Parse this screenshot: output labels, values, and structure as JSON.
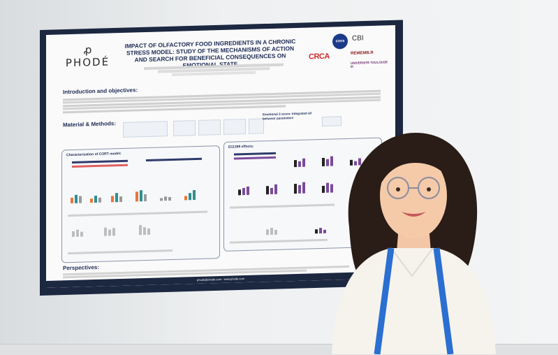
{
  "poster": {
    "brand": "PHODÉ",
    "brand_mark": "ꝓ",
    "title": "IMPACT OF OLFACTORY FOOD INGREDIENTS IN A CHRONIC STRESS MODEL: STUDY OF THE MECHANISMS OF ACTION AND SEARCH FOR BENEFICIAL CONSEQUENCES ON EMOTIONAL STATE",
    "partners": {
      "cnrs": "cnrs",
      "crca": "CRCA",
      "cbi": "CBI",
      "rememb": "REMEMB.R",
      "univ": "UNIVERSITÉ TOULOUSE III"
    },
    "sections": {
      "intro": "Introduction and objectives:",
      "methods": "Material & Methods:",
      "emotional": "Emotional Z-score: Integrated all behavior parameters",
      "cort_model": "Characterization of CORT model:",
      "d11399": "D11399 effects:",
      "perspectives": "Perspectives:"
    },
    "footer": "phode@phode.com - www.phode.com"
  },
  "colors": {
    "poster_border": "#1c2740",
    "title_blue": "#1d2b55",
    "bar_orange": "#e8773a",
    "bar_teal": "#2f8f8f",
    "bar_purple": "#7b4a9a",
    "bar_gray": "#9a9a9a",
    "lanyard": "#2a6fd1"
  }
}
